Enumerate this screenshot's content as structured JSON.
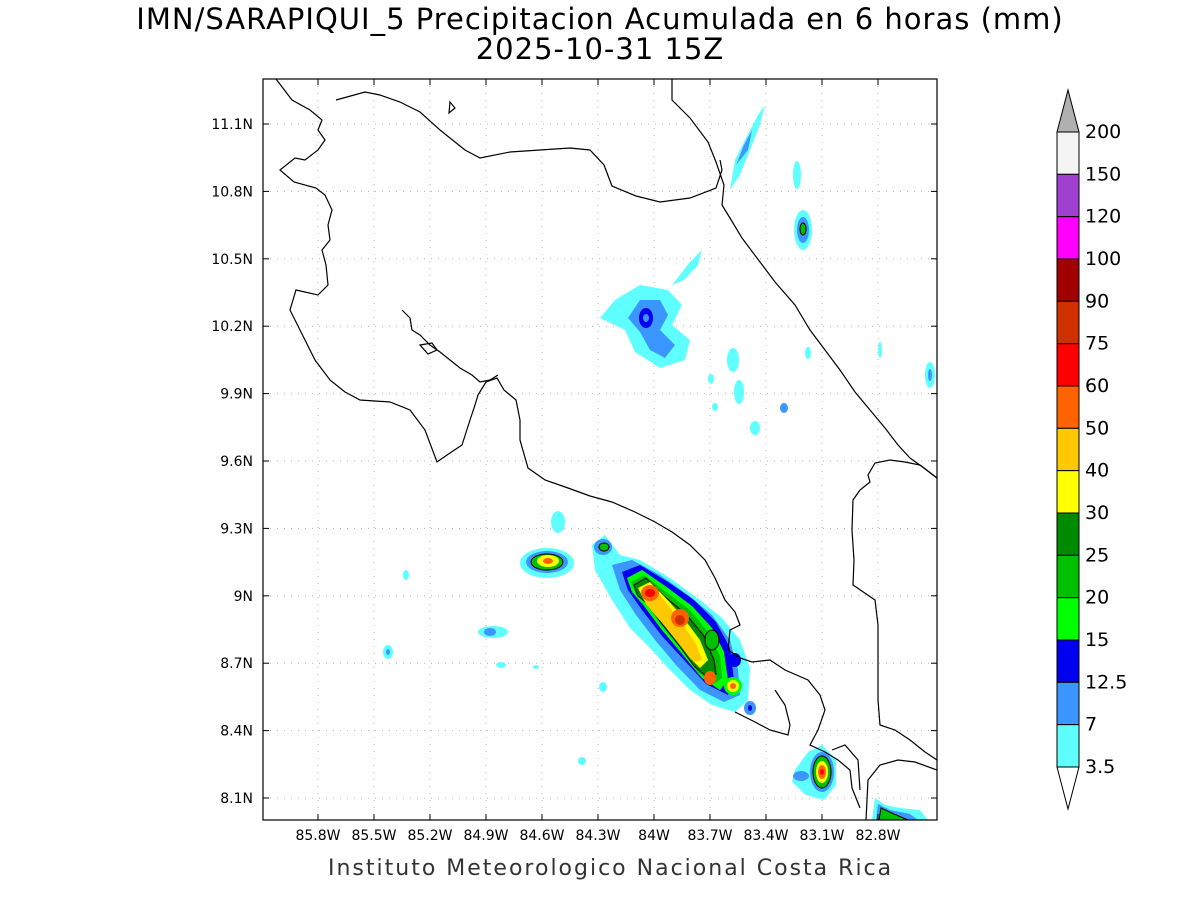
{
  "title": {
    "line1": "IMN/SARAPIQUI_5 Precipitacion Acumulada en 6 horas (mm)",
    "line2": "2025-10-31 15Z"
  },
  "footer": "Instituto Meteorologico Nacional Costa Rica",
  "map": {
    "lat_ticks": [
      "11.1N",
      "10.8N",
      "10.5N",
      "10.2N",
      "9.9N",
      "9.6N",
      "9.3N",
      "9N",
      "8.7N",
      "8.4N",
      "8.1N"
    ],
    "lon_ticks": [
      "85.8W",
      "85.5W",
      "85.2W",
      "84.9W",
      "84.6W",
      "84.3W",
      "84W",
      "83.7W",
      "83.4W",
      "83.1W",
      "82.8W"
    ],
    "lat_values": [
      11.1,
      10.8,
      10.5,
      10.2,
      9.9,
      9.6,
      9.3,
      9.0,
      8.7,
      8.4,
      8.1
    ],
    "lon_values": [
      -85.8,
      -85.5,
      -85.2,
      -84.9,
      -84.6,
      -84.3,
      -84.0,
      -83.7,
      -83.4,
      -83.1,
      -82.8
    ],
    "grid": true
  },
  "colorbar": {
    "labels": [
      "200",
      "150",
      "120",
      "100",
      "90",
      "75",
      "60",
      "50",
      "40",
      "30",
      "25",
      "20",
      "15",
      "12.5",
      "7",
      "3.5"
    ],
    "colors": [
      "#f4f4f4",
      "#a040d0",
      "#ff00ff",
      "#a00000",
      "#d03000",
      "#ff0000",
      "#ff6400",
      "#ffc800",
      "#ffff00",
      "#008a00",
      "#00c000",
      "#00ff00",
      "#0000f0",
      "#3c96ff",
      "#60ffff"
    ],
    "top_arrow_color": "#b0b0b0",
    "bottom_arrow_color": "#ffffff"
  }
}
